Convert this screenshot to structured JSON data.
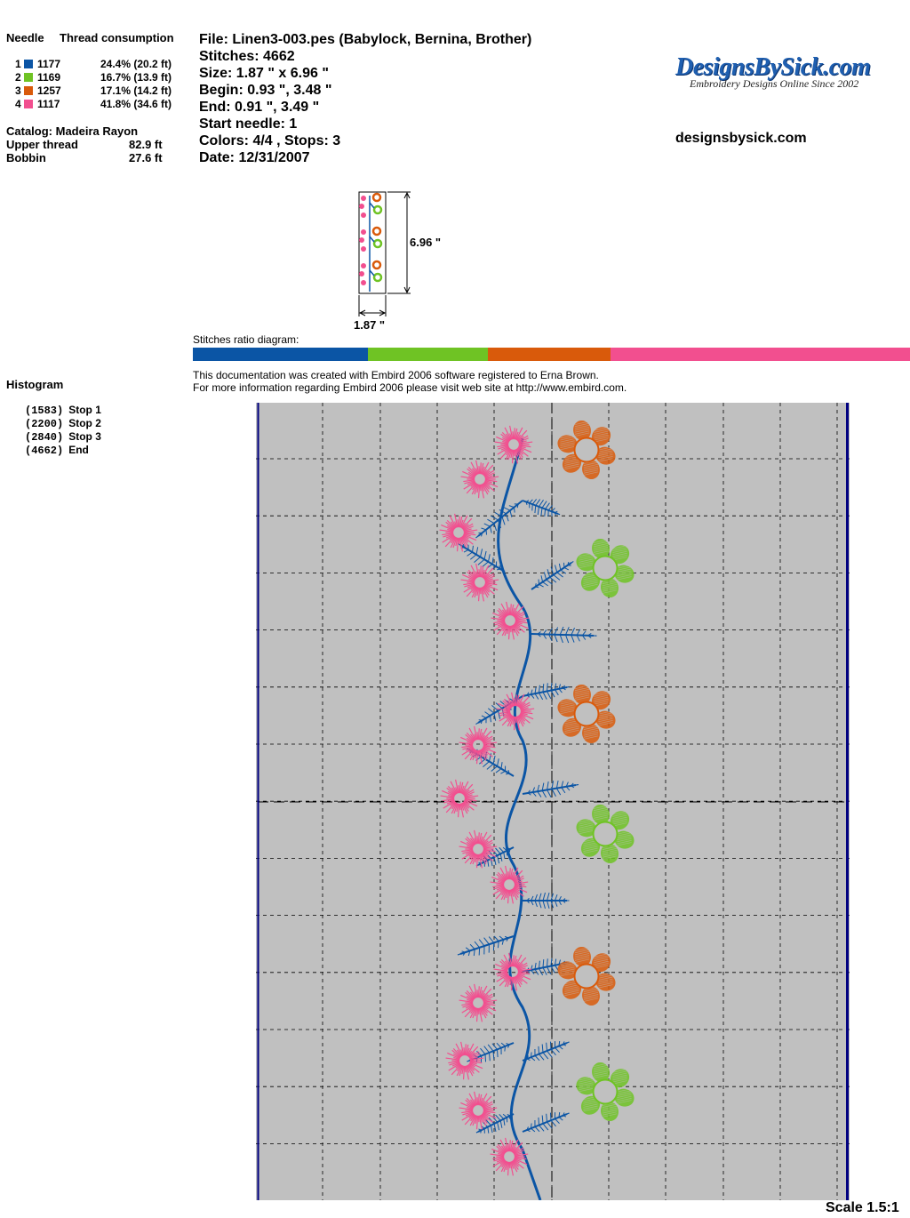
{
  "threads": {
    "header_needle": "Needle",
    "header_consumption": "Thread consumption",
    "items": [
      {
        "needle": "1",
        "code": "1177",
        "percent": "24.4% (20.2 ft)",
        "color": "#0b55a5",
        "ratio": 24.4
      },
      {
        "needle": "2",
        "code": "1169",
        "percent": "16.7% (13.9 ft)",
        "color": "#6fc324",
        "ratio": 16.7
      },
      {
        "needle": "3",
        "code": "1257",
        "percent": "17.1% (14.2 ft)",
        "color": "#d95a0b",
        "ratio": 17.1
      },
      {
        "needle": "4",
        "code": "1117",
        "percent": "41.8% (34.6 ft)",
        "color": "#f24f8f",
        "ratio": 41.8
      }
    ],
    "catalog": "Catalog: Madeira Rayon",
    "upper_label": "Upper thread",
    "upper_value": "82.9 ft",
    "bobbin_label": "Bobbin",
    "bobbin_value": "27.6 ft"
  },
  "file_info": {
    "file": "File: Linen3-003.pes  (Babylock, Bernina, Brother)",
    "stitches": "Stitches: 4662",
    "size": "Size: 1.87 \" x 6.96 \"",
    "begin": "Begin: 0.93 \", 3.48 \"",
    "end": "End: 0.91 \", 3.49 \"",
    "start_needle": "Start needle: 1",
    "colors_stops": "Colors: 4/4 , Stops: 3",
    "date": "Date: 12/31/2007"
  },
  "logo": {
    "main": "DesignsBySick.com",
    "sub": "Embroidery Designs Online Since 2002",
    "website": "designsbysick.com"
  },
  "thumbnail": {
    "height_label": "6.96 \"",
    "width_label": "1.87 \""
  },
  "ratio": {
    "label": "Stitches ratio diagram:"
  },
  "credits": {
    "line1": "This documentation was created with Embird 2006 software registered to Erna Brown.",
    "line2": "For more information regarding Embird 2006 please visit web site at http://www.embird.com."
  },
  "histogram": {
    "title": "Histogram",
    "stops": [
      {
        "count": "(1583)",
        "label": "Stop 1"
      },
      {
        "count": "(2200)",
        "label": "Stop 2"
      },
      {
        "count": "(2840)",
        "label": "Stop 3"
      },
      {
        "count": "(4662)",
        "label": "End"
      }
    ]
  },
  "scale": "Scale 1.5:1",
  "colors": {
    "canvas_bg": "#c0c0c0",
    "border": "#000080",
    "blue": "#0b55a5",
    "green": "#6fc324",
    "orange": "#d95a0b",
    "pink": "#f24f8f"
  }
}
